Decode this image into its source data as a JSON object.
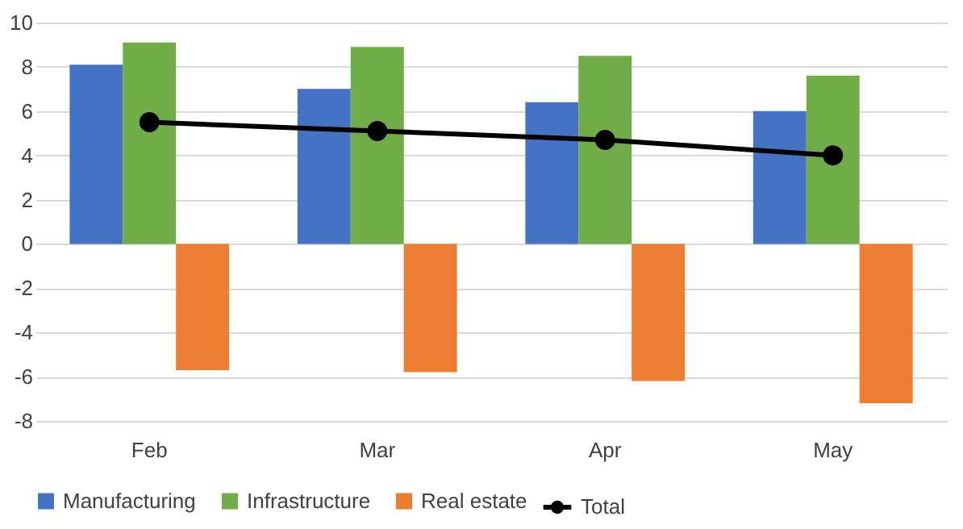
{
  "chart_data": {
    "type": "bar",
    "categories": [
      "Feb",
      "Mar",
      "Apr",
      "May"
    ],
    "series": [
      {
        "name": "Manufacturing",
        "color": "#4472c4",
        "values": [
          8.1,
          7.0,
          6.4,
          6.0
        ]
      },
      {
        "name": "Infrastructure",
        "color": "#70ad47",
        "values": [
          9.1,
          8.9,
          8.5,
          7.6
        ]
      },
      {
        "name": "Real estate",
        "color": "#ed7d31",
        "values": [
          -5.7,
          -5.8,
          -6.2,
          -7.2
        ]
      },
      {
        "name": "Total",
        "color": "#000000",
        "type": "line",
        "marker": "circle",
        "values": [
          5.5,
          5.1,
          4.7,
          4.0
        ]
      }
    ],
    "ylim": [
      -8,
      10
    ],
    "yticks": [
      -8,
      -6,
      -4,
      -2,
      0,
      2,
      4,
      6,
      8,
      10
    ],
    "grid": "y",
    "legend": "bottom"
  }
}
